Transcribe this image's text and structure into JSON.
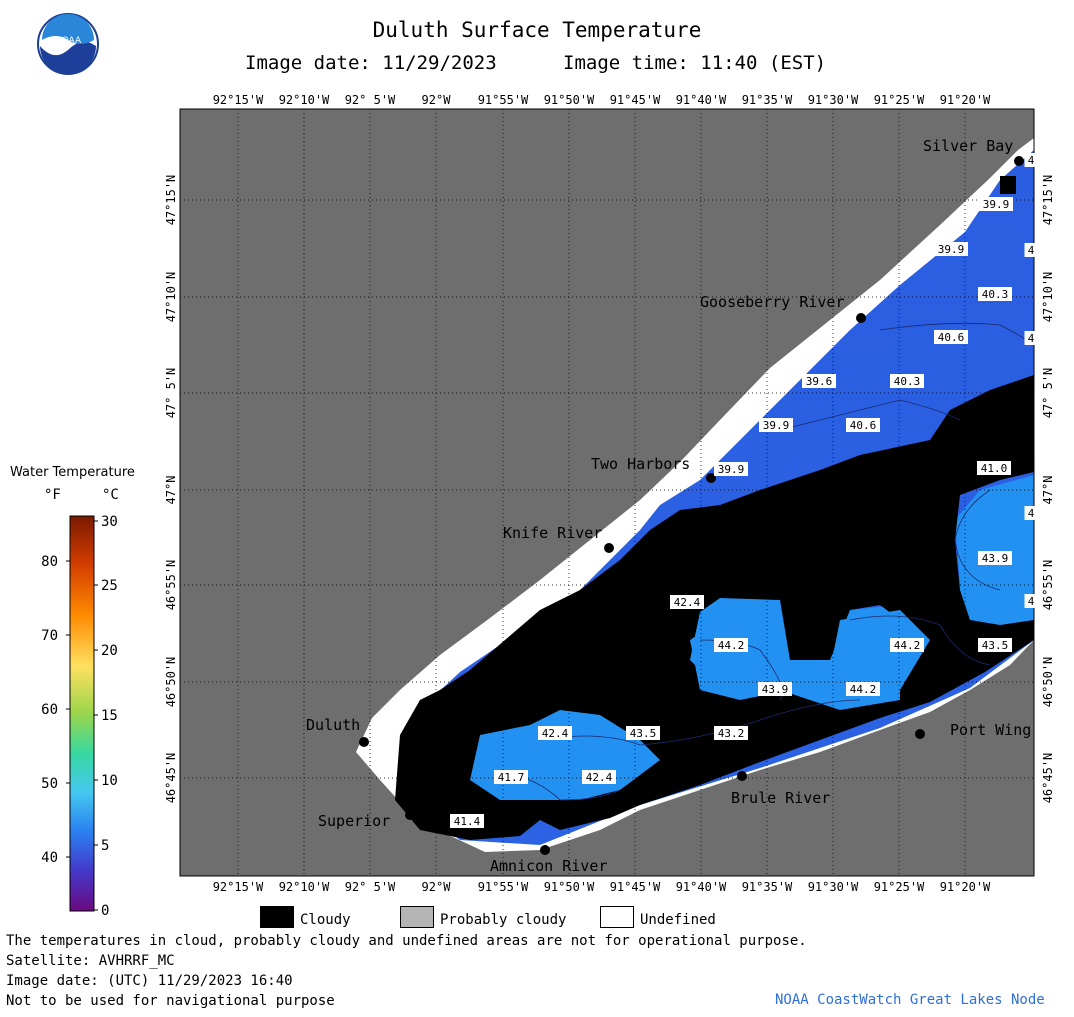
{
  "header": {
    "title": "Duluth Surface Temperature",
    "image_date": "Image date: 11/29/2023",
    "image_time": "Image time: 11:40 (EST)",
    "logo_text": "NOAA"
  },
  "colors": {
    "land": "#6e6e6e",
    "cloud": "#000000",
    "undefined": "#ffffff",
    "water_cold": "#2b5de0",
    "water_mid": "#1f7fef",
    "water_warm": "#3aa0f5"
  },
  "map": {
    "longitude_labels": [
      "92°15'W",
      "92°10'W",
      "92° 5'W",
      "92°W",
      "91°55'W",
      "91°50'W",
      "91°45'W",
      "91°40'W",
      "91°35'W",
      "91°30'W",
      "91°25'W",
      "91°20'W"
    ],
    "latitude_labels": [
      "47°15'N",
      "47°10'N",
      "47° 5'N",
      "47°N",
      "46°55'N",
      "46°50'N",
      "46°45'N"
    ],
    "places": [
      {
        "name": "Silver Bay"
      },
      {
        "name": "Gooseberry River"
      },
      {
        "name": "Two Harbors"
      },
      {
        "name": "Knife River"
      },
      {
        "name": "Duluth"
      },
      {
        "name": "Superior"
      },
      {
        "name": "Amnicon River"
      },
      {
        "name": "Brule River"
      },
      {
        "name": "Port Wing"
      }
    ],
    "temperature_labels": [
      "39.9",
      "39.9",
      "40.3",
      "40.6",
      "39.6",
      "40.3",
      "39.9",
      "40.6",
      "39.9",
      "41.0",
      "43.9",
      "42.4",
      "44.2",
      "44.2",
      "43.5",
      "43.9",
      "44.2",
      "42.4",
      "43.5",
      "43.2",
      "41.7",
      "42.4",
      "41.4",
      "4",
      "4",
      "4",
      "4",
      "4",
      "4"
    ]
  },
  "legend": {
    "title": "Water Temperature",
    "unit_f": "°F",
    "unit_c": "°C",
    "fahrenheit_ticks": [
      "80",
      "70",
      "60",
      "50",
      "40"
    ],
    "celsius_ticks": [
      "30",
      "25",
      "20",
      "15",
      "10",
      "5",
      "0"
    ],
    "categories": [
      {
        "label": "Cloudy",
        "color": "#000000"
      },
      {
        "label": "Probably cloudy",
        "color": "#b4b4b4"
      },
      {
        "label": "Undefined",
        "color": "#ffffff"
      }
    ]
  },
  "footer": {
    "note": "The temperatures in cloud, probably cloudy and undefined areas are not for operational purpose.",
    "satellite": "Satellite: AVHRRF_MC",
    "utc_date": "Image date: (UTC) 11/29/2023  16:40",
    "navigation": "Not to be used for navigational purpose",
    "credit": "NOAA CoastWatch Great Lakes Node"
  }
}
